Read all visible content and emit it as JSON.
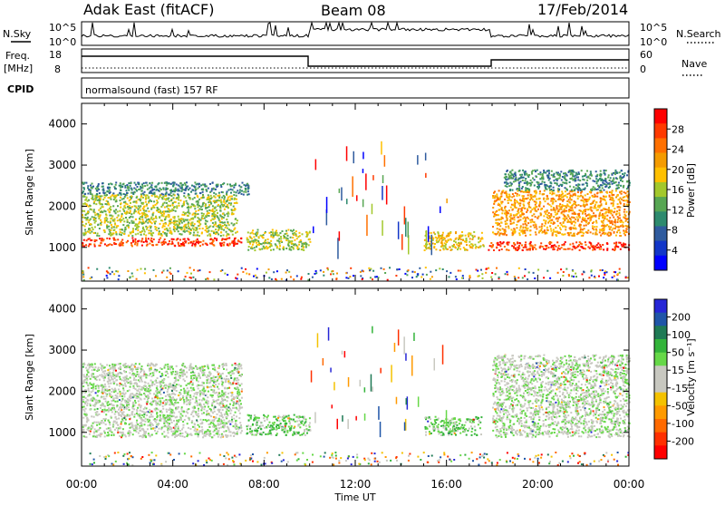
{
  "header": {
    "station": "Adak East (fitACF)",
    "beam": "Beam 08",
    "date": "17/Feb/2014"
  },
  "strip": {
    "nsky_label": "N.Sky",
    "nsearch_label": "N.Search",
    "nsky_ticks": [
      "10^5",
      "10^0"
    ],
    "nsearch_ticks": [
      "10^5",
      "10^0"
    ],
    "freq_label_1": "Freq.",
    "freq_label_2": "[MHz]",
    "freq_ticks": [
      "18",
      "8"
    ],
    "nave_label": "Nave",
    "nave_ticks": [
      "60",
      "0"
    ],
    "cpid_label": "CPID",
    "program": "normalsound (fast) 157 RF"
  },
  "colorbars": {
    "power": {
      "label": "Power [dB]",
      "ticks": [
        "28",
        "24",
        "20",
        "16",
        "12",
        "8",
        "4"
      ],
      "colors": [
        "#ff0000",
        "#ff3a00",
        "#ff7000",
        "#f49b00",
        "#ffc000",
        "#a3c82c",
        "#57a653",
        "#2d8a6e",
        "#2f5b9e",
        "#1236c8",
        "#0000ff"
      ]
    },
    "velocity": {
      "label": "Velocity [m s⁻¹]",
      "ticks": [
        "200",
        "100",
        "50",
        "15",
        "-15",
        "-50",
        "-100",
        "-200"
      ],
      "colors": [
        "#2626d6",
        "#1f55a8",
        "#1f7a55",
        "#33b43a",
        "#66d848",
        "#c8c8c0",
        "#c8c8c0",
        "#f4c200",
        "#ff9a00",
        "#ff6a00",
        "#ff3000",
        "#ff0000"
      ]
    }
  },
  "chart_data": [
    {
      "type": "heatmap",
      "panel": "power",
      "ylabel": "Slant Range [km]",
      "yticks": [
        1000,
        2000,
        3000,
        4000
      ],
      "ylim": [
        180,
        4500
      ],
      "xlim": [
        0,
        24
      ],
      "xticks": [
        "00:00",
        "04:00",
        "08:00",
        "12:00",
        "16:00",
        "20:00",
        "00:00"
      ],
      "colorbar": "Power [dB]",
      "clim": [
        0,
        30
      ],
      "regions": [
        {
          "x": [
            0,
            7.0
          ],
          "y": [
            1050,
            1250
          ],
          "value": 28
        },
        {
          "x": [
            0,
            6.8
          ],
          "y": [
            1300,
            2300
          ],
          "value": 16
        },
        {
          "x": [
            0,
            7.3
          ],
          "y": [
            2300,
            2600
          ],
          "value": 10
        },
        {
          "x": [
            7.2,
            10.0
          ],
          "y": [
            950,
            1450
          ],
          "value": 14
        },
        {
          "x": [
            15.0,
            17.6
          ],
          "y": [
            950,
            1400
          ],
          "value": 18
        },
        {
          "x": [
            17.8,
            24
          ],
          "y": [
            950,
            1150
          ],
          "value": 28
        },
        {
          "x": [
            18.0,
            24
          ],
          "y": [
            1300,
            2400
          ],
          "value": 20
        },
        {
          "x": [
            18.5,
            24
          ],
          "y": [
            2400,
            2900
          ],
          "value": 10
        }
      ]
    },
    {
      "type": "heatmap",
      "panel": "velocity",
      "ylabel": "Slant Range [km]",
      "yticks": [
        1000,
        2000,
        3000,
        4000
      ],
      "ylim": [
        180,
        4500
      ],
      "xlim": [
        0,
        24
      ],
      "xticks": [
        "00:00",
        "04:00",
        "08:00",
        "12:00",
        "16:00",
        "20:00",
        "00:00"
      ],
      "xlabel": "Time UT",
      "colorbar": "Velocity [m s⁻¹]",
      "clim": [
        -250,
        250
      ],
      "regions": [
        {
          "x": [
            0,
            7.0
          ],
          "y": [
            900,
            2700
          ],
          "value": 0
        },
        {
          "x": [
            7.2,
            10.0
          ],
          "y": [
            950,
            1450
          ],
          "value": 40
        },
        {
          "x": [
            15.0,
            17.5
          ],
          "y": [
            950,
            1400
          ],
          "value": 40
        },
        {
          "x": [
            18.0,
            24
          ],
          "y": [
            900,
            2900
          ],
          "value": 0
        }
      ]
    }
  ]
}
